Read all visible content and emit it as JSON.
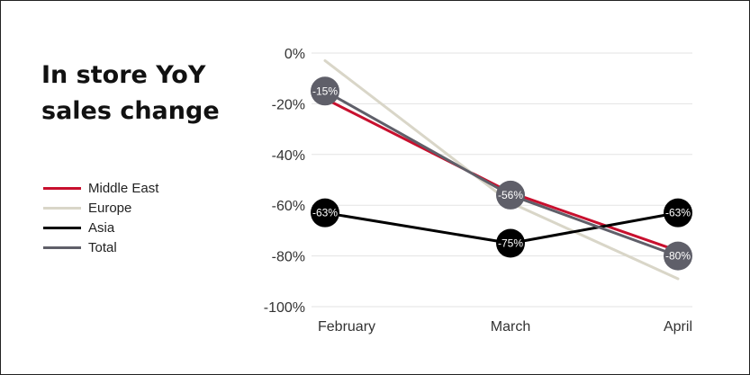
{
  "chart_data": {
    "type": "line",
    "title": "In store YoY sales change",
    "categories": [
      "February",
      "March",
      "April"
    ],
    "ylim": [
      -100,
      0
    ],
    "yticks": [
      0,
      -20,
      -40,
      -60,
      -80,
      -100
    ],
    "ytick_labels": [
      "0%",
      "-20%",
      "-40%",
      "-60%",
      "-80%",
      "-100%"
    ],
    "grid": true,
    "legend_position": "left",
    "series": [
      {
        "name": "Middle East",
        "color": "#c8102e",
        "values": [
          -18,
          -55,
          -78
        ],
        "labels": [
          null,
          null,
          null
        ]
      },
      {
        "name": "Europe",
        "color": "#d9d6c8",
        "values": [
          -3,
          -59,
          -89
        ],
        "labels": [
          null,
          null,
          null
        ]
      },
      {
        "name": "Asia",
        "color": "#000000",
        "values": [
          -63,
          -75,
          -63
        ],
        "labels": [
          "-63%",
          "-75%",
          "-63%"
        ]
      },
      {
        "name": "Total",
        "color": "#5f5f69",
        "values": [
          -15,
          -56,
          -80
        ],
        "labels": [
          "-15%",
          "-56%",
          "-80%"
        ]
      }
    ]
  }
}
